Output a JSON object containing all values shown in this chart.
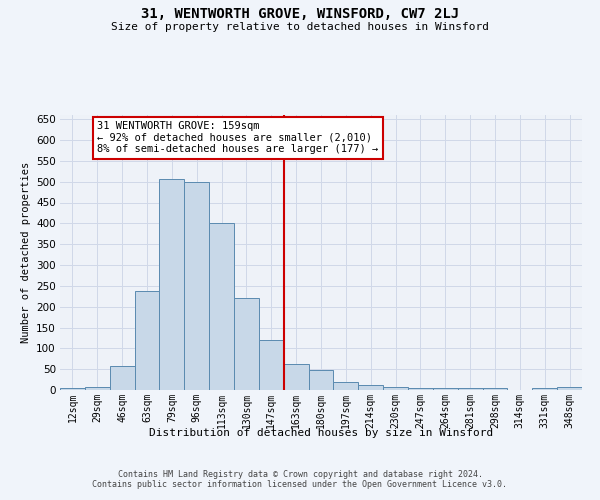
{
  "title": "31, WENTWORTH GROVE, WINSFORD, CW7 2LJ",
  "subtitle": "Size of property relative to detached houses in Winsford",
  "xlabel": "Distribution of detached houses by size in Winsford",
  "ylabel": "Number of detached properties",
  "footer_line1": "Contains HM Land Registry data © Crown copyright and database right 2024.",
  "footer_line2": "Contains public sector information licensed under the Open Government Licence v3.0.",
  "bar_labels": [
    "12sqm",
    "29sqm",
    "46sqm",
    "63sqm",
    "79sqm",
    "96sqm",
    "113sqm",
    "130sqm",
    "147sqm",
    "163sqm",
    "180sqm",
    "197sqm",
    "214sqm",
    "230sqm",
    "247sqm",
    "264sqm",
    "281sqm",
    "298sqm",
    "314sqm",
    "331sqm",
    "348sqm"
  ],
  "bar_heights": [
    5,
    8,
    57,
    237,
    507,
    500,
    400,
    222,
    120,
    62,
    47,
    20,
    12,
    8,
    5,
    5,
    5,
    5,
    0,
    5,
    8
  ],
  "ylim": [
    0,
    660
  ],
  "yticks": [
    0,
    50,
    100,
    150,
    200,
    250,
    300,
    350,
    400,
    450,
    500,
    550,
    600,
    650
  ],
  "bar_color": "#c8d8e8",
  "bar_edge_color": "#5a8ab0",
  "vline_pos": 8.5,
  "vline_color": "#cc0000",
  "annotation_text": "31 WENTWORTH GROVE: 159sqm\n← 92% of detached houses are smaller (2,010)\n8% of semi-detached houses are larger (177) →",
  "annotation_box_color": "#ffffff",
  "annotation_box_edge": "#cc0000",
  "grid_color": "#d0d8e8",
  "fig_bg_color": "#f0f4fa",
  "plot_bg_color": "#eef2f8"
}
